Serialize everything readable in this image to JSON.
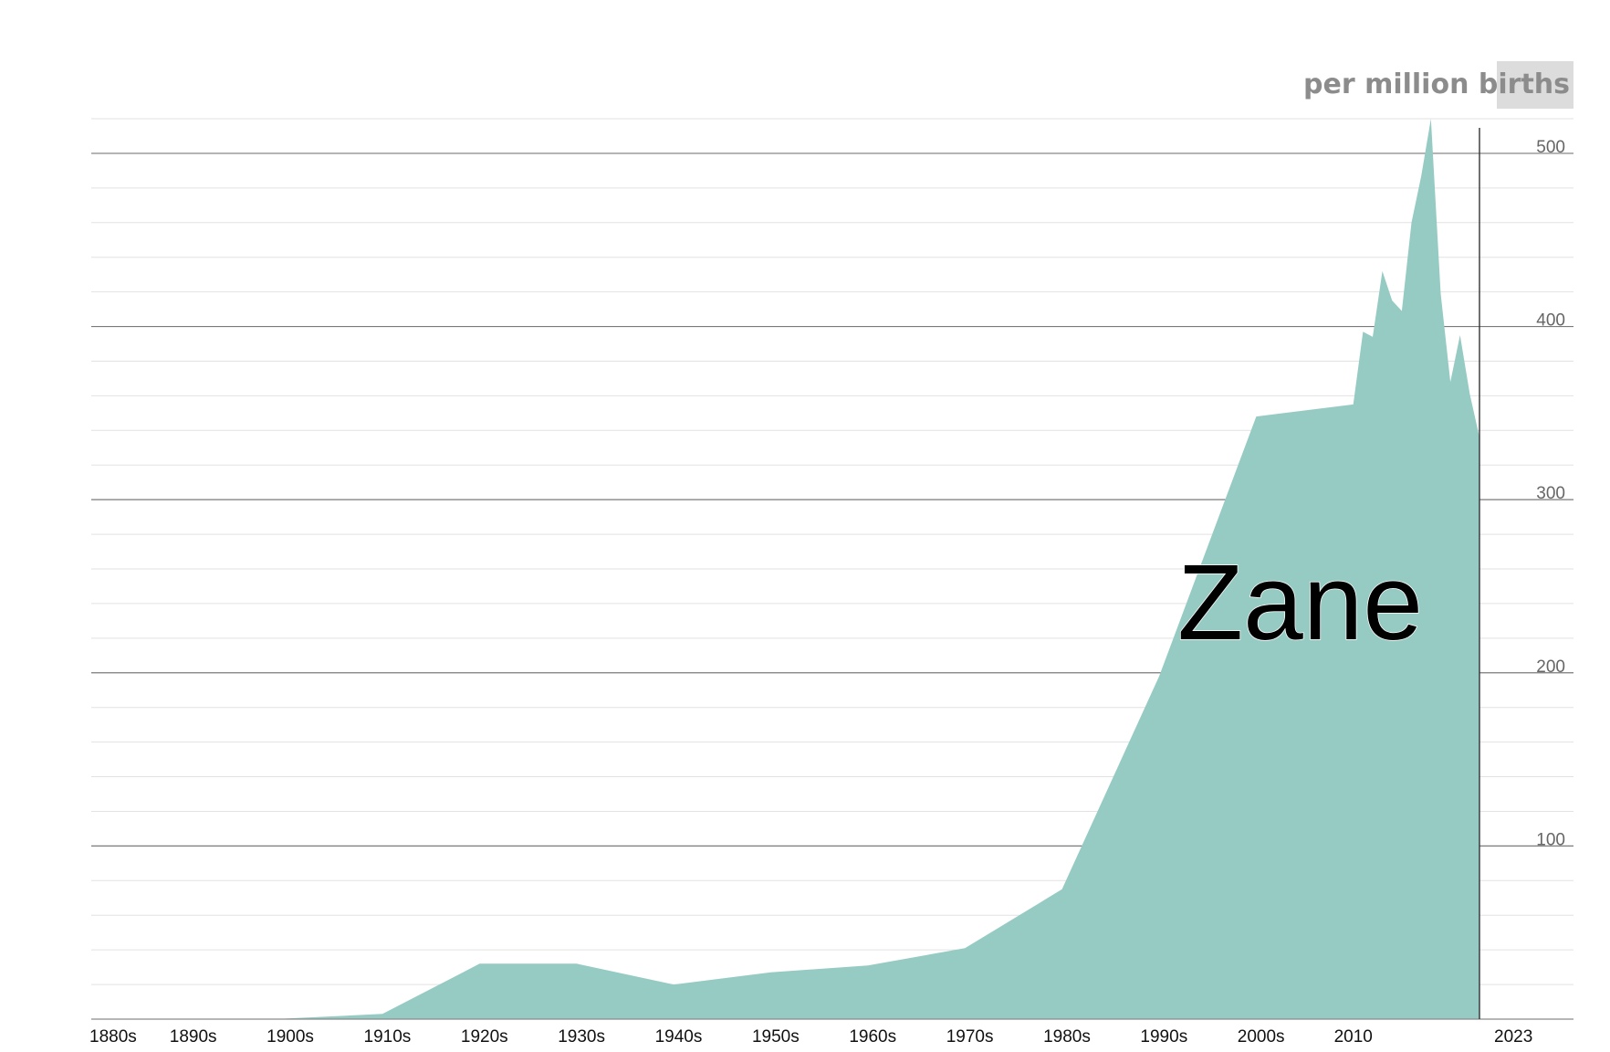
{
  "chart_data": {
    "type": "area",
    "title": "",
    "name_label": "Zane",
    "units_label": "per million births",
    "xlabel": "",
    "ylabel": "",
    "x_tick_labels": [
      "1880s",
      "1890s",
      "1900s",
      "1910s",
      "1920s",
      "1930s",
      "1940s",
      "1950s",
      "1960s",
      "1970s",
      "1980s",
      "1990s",
      "2000s",
      "2010",
      "2023"
    ],
    "y_ticks": [
      100,
      200,
      300,
      400,
      500
    ],
    "ylim": [
      0,
      520
    ],
    "xlim": [
      1880,
      2023
    ],
    "grid": true,
    "fill_color": "#96cbc4",
    "series": [
      {
        "x": [
          1900,
          1910,
          1920,
          1930,
          1940,
          1950,
          1960,
          1970,
          1980,
          1990,
          2000,
          2010,
          2011,
          2012,
          2013,
          2014,
          2015,
          2016,
          2017,
          2018,
          2019,
          2020,
          2021,
          2022,
          2023
        ],
        "values": [
          0.3,
          3,
          32,
          32,
          20,
          27,
          31,
          41,
          75,
          198,
          348,
          355,
          397,
          394,
          432,
          415,
          409,
          460,
          487,
          520,
          419,
          368,
          395,
          361,
          336
        ]
      }
    ]
  }
}
